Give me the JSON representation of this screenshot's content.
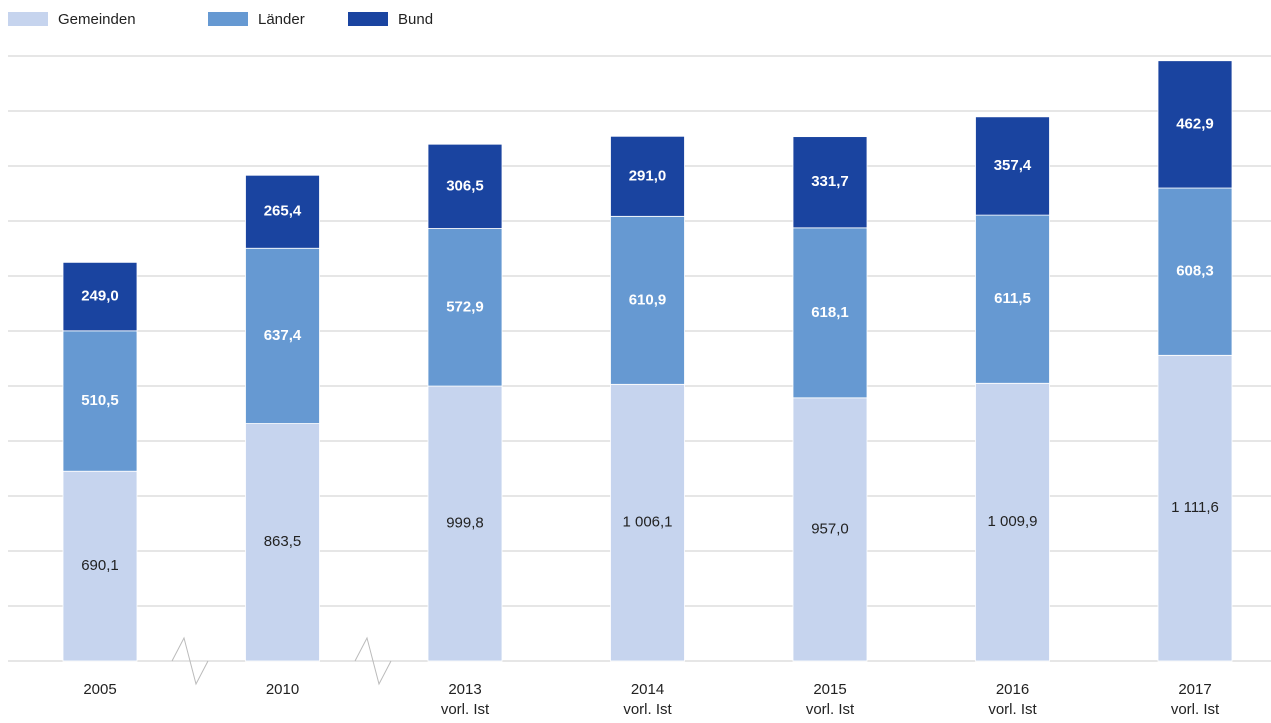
{
  "chart_data": {
    "type": "stacked-bar",
    "categories": [
      "2005",
      "2010",
      "2013\nvorl. Ist",
      "2014\nvorl. Ist",
      "2015\nvorl. Ist",
      "2016\nvorl. Ist",
      "2017\nvorl. Ist"
    ],
    "series": [
      {
        "name": "Gemeinden",
        "color": "#c6d4ee",
        "label_color": "#222222",
        "values": [
          690.1,
          863.5,
          999.8,
          1006.1,
          957.0,
          1009.9,
          1111.6
        ],
        "value_labels": [
          "690,1",
          "863,5",
          "999,8",
          "1 006,1",
          "957,0",
          "1 009,9",
          "1 111,6"
        ]
      },
      {
        "name": "Länder",
        "color": "#6699d2",
        "label_color": "#ffffff",
        "values": [
          510.5,
          637.4,
          572.9,
          610.9,
          618.1,
          611.5,
          608.3
        ],
        "value_labels": [
          "510,5",
          "637,4",
          "572,9",
          "610,9",
          "618,1",
          "611,5",
          "608,3"
        ]
      },
      {
        "name": "Bund",
        "color": "#1a44a0",
        "label_color": "#ffffff",
        "values": [
          249.0,
          265.4,
          306.5,
          291.0,
          331.7,
          357.4,
          462.9
        ],
        "value_labels": [
          "249,0",
          "265,4",
          "306,5",
          "291,0",
          "331,7",
          "357,4",
          "462,9"
        ]
      }
    ],
    "ylim": [
      0,
      2200
    ],
    "yticks": [
      0,
      200,
      400,
      600,
      800,
      1000,
      1200,
      1400,
      1600,
      1800,
      2000,
      2200
    ],
    "grid": true,
    "legend": "top-left"
  }
}
